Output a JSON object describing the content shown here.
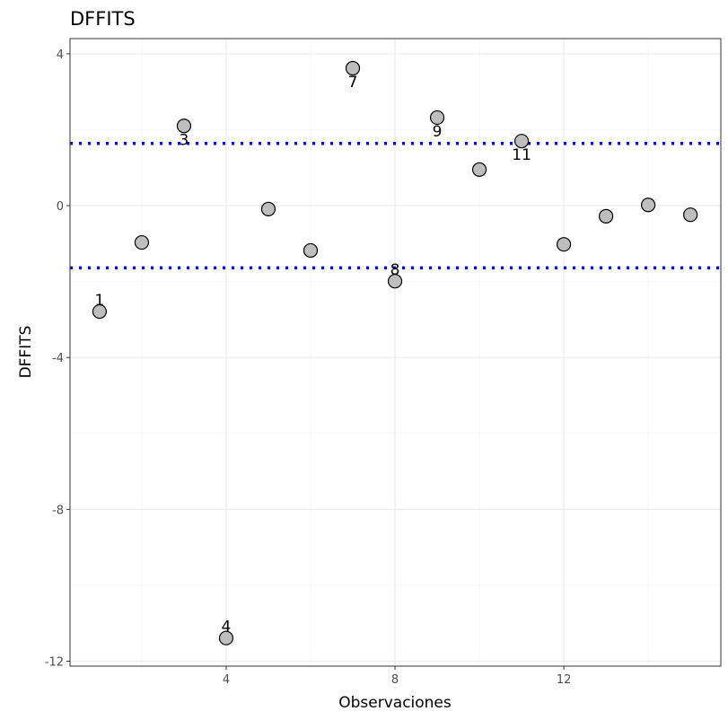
{
  "chart_data": {
    "type": "scatter",
    "title": "DFFITS",
    "xlabel": "Observaciones",
    "ylabel": "DFFITS",
    "xlim": [
      0.3,
      15.72
    ],
    "ylim": [
      -12.13,
      4.4
    ],
    "x_ticks": [
      4,
      8,
      12
    ],
    "x_tick_labels": [
      "4",
      "8",
      "12"
    ],
    "x_minor": [
      2,
      6,
      10,
      14
    ],
    "y_ticks": [
      4,
      0,
      -4,
      -8,
      -12
    ],
    "y_tick_labels": [
      "4",
      "0",
      "-4",
      "-8",
      "-12"
    ],
    "y_minor": [
      2,
      -2,
      -6,
      -10
    ],
    "grid": true,
    "points": [
      {
        "x": 1,
        "y": -2.79,
        "label": "1",
        "label_pos": "above"
      },
      {
        "x": 2,
        "y": -0.97,
        "label": ""
      },
      {
        "x": 3,
        "y": 2.1,
        "label": "3",
        "label_pos": "below"
      },
      {
        "x": 4,
        "y": -11.39,
        "label": "4",
        "label_pos": "above"
      },
      {
        "x": 5,
        "y": -0.09,
        "label": ""
      },
      {
        "x": 6,
        "y": -1.18,
        "label": ""
      },
      {
        "x": 7,
        "y": 3.62,
        "label": "7",
        "label_pos": "below"
      },
      {
        "x": 8,
        "y": -1.99,
        "label": "8",
        "label_pos": "above"
      },
      {
        "x": 9,
        "y": 2.32,
        "label": "9",
        "label_pos": "below"
      },
      {
        "x": 10,
        "y": 0.95,
        "label": ""
      },
      {
        "x": 11,
        "y": 1.7,
        "label": "11",
        "label_pos": "below"
      },
      {
        "x": 12,
        "y": -1.02,
        "label": ""
      },
      {
        "x": 13,
        "y": -0.28,
        "label": ""
      },
      {
        "x": 14,
        "y": 0.02,
        "label": ""
      },
      {
        "x": 15,
        "y": -0.24,
        "label": ""
      }
    ],
    "thresholds": [
      1.64,
      -1.64
    ],
    "colors": {
      "point_fill": "#bebebe",
      "threshold": "#0000ff",
      "grid": "#ebebeb",
      "border": "#333333"
    }
  }
}
